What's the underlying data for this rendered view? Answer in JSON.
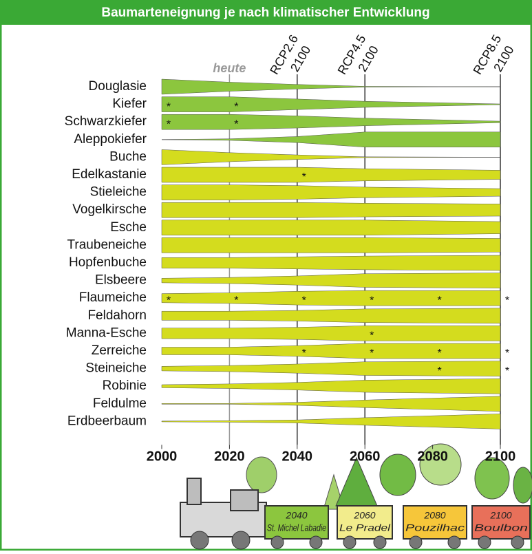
{
  "chart_data": {
    "type": "band",
    "title": "Baumarteneignung je nach klimatischer Entwicklung",
    "x": [
      2000,
      2020,
      2040,
      2060,
      2100
    ],
    "xlim": [
      2000,
      2100
    ],
    "xticks": [
      2000,
      2020,
      2040,
      2060,
      2080,
      2100
    ],
    "marker": "*",
    "reference_lines": [
      {
        "x": 2020,
        "label": [
          "heute"
        ],
        "color": "#999999"
      },
      {
        "x": 2040,
        "label": [
          "RCP2.6",
          "2100"
        ],
        "color": "#333333"
      },
      {
        "x": 2060,
        "label": [
          "RCP4.5",
          "2100"
        ],
        "color": "#333333"
      },
      {
        "x": 2100,
        "label": [
          "RCP8.5",
          "2100"
        ],
        "color": "#333333"
      }
    ],
    "series": [
      {
        "name": "Douglasie",
        "color": "#8cc63e",
        "values": [
          1,
          0.6,
          0.3,
          0.05,
          0
        ],
        "stars": []
      },
      {
        "name": "Kiefer",
        "color": "#8cc63e",
        "values": [
          1,
          1,
          0.7,
          0.4,
          0.05
        ],
        "stars": [
          2000,
          2020
        ]
      },
      {
        "name": "Schwarzkiefer",
        "color": "#8cc63e",
        "values": [
          1,
          1,
          0.8,
          0.5,
          0.1
        ],
        "stars": [
          2000,
          2020
        ]
      },
      {
        "name": "Aleppokiefer",
        "color": "#8cc63e",
        "values": [
          0,
          0.1,
          0.4,
          1,
          1
        ],
        "stars": []
      },
      {
        "name": "Buche",
        "color": "#d4dc1e",
        "values": [
          1,
          0.6,
          0.3,
          0.05,
          0
        ],
        "stars": []
      },
      {
        "name": "Edelkastanie",
        "color": "#d4dc1e",
        "values": [
          1,
          1,
          1,
          0.8,
          0.6
        ],
        "stars": [
          2040
        ]
      },
      {
        "name": "Stieleiche",
        "color": "#d4dc1e",
        "values": [
          1,
          1,
          0.9,
          0.7,
          0.5
        ],
        "stars": []
      },
      {
        "name": "Vogelkirsche",
        "color": "#d4dc1e",
        "values": [
          1,
          1,
          1,
          0.9,
          0.8
        ],
        "stars": []
      },
      {
        "name": "Esche",
        "color": "#d4dc1e",
        "values": [
          1,
          1,
          1,
          1,
          0.8
        ],
        "stars": []
      },
      {
        "name": "Traubeneiche",
        "color": "#d4dc1e",
        "values": [
          1,
          1,
          1,
          1,
          0.9
        ],
        "stars": []
      },
      {
        "name": "Hopfenbuche",
        "color": "#d4dc1e",
        "values": [
          0.7,
          0.7,
          0.8,
          0.9,
          1
        ],
        "stars": []
      },
      {
        "name": "Elsbeere",
        "color": "#d4dc1e",
        "values": [
          0.3,
          0.4,
          0.6,
          0.9,
          1
        ],
        "stars": []
      },
      {
        "name": "Flaumeiche",
        "color": "#d4dc1e",
        "values": [
          0.6,
          0.7,
          0.9,
          1,
          1
        ],
        "stars": [
          2000,
          2020,
          2040,
          2060,
          2080,
          2100
        ]
      },
      {
        "name": "Feldahorn",
        "color": "#d4dc1e",
        "values": [
          0.6,
          0.6,
          0.7,
          0.9,
          1
        ],
        "stars": []
      },
      {
        "name": "Manna-Esche",
        "color": "#d4dc1e",
        "values": [
          0.7,
          0.7,
          0.8,
          1,
          1
        ],
        "stars": [
          2060
        ]
      },
      {
        "name": "Zerreiche",
        "color": "#d4dc1e",
        "values": [
          0.5,
          0.5,
          0.7,
          1,
          1
        ],
        "stars": [
          2040,
          2060,
          2080,
          2100
        ]
      },
      {
        "name": "Steineiche",
        "color": "#d4dc1e",
        "values": [
          0.3,
          0.4,
          0.6,
          0.9,
          1
        ],
        "stars": [
          2080,
          2100
        ]
      },
      {
        "name": "Robinie",
        "color": "#d4dc1e",
        "values": [
          0.2,
          0.3,
          0.5,
          0.8,
          1
        ],
        "stars": []
      },
      {
        "name": "Feldulme",
        "color": "#d4dc1e",
        "values": [
          0.05,
          0.05,
          0.2,
          0.5,
          1
        ],
        "stars": []
      },
      {
        "name": "Erdbeerbaum",
        "color": "#d4dc1e",
        "values": [
          0.05,
          0.1,
          0.2,
          0.5,
          1
        ],
        "stars": []
      }
    ]
  },
  "illustration": {
    "wagons": [
      {
        "year": "2040",
        "place": "St. Michel Labadie",
        "color": "#8cc63e"
      },
      {
        "year": "2060",
        "place": "Le Pradel",
        "color": "#f2ec8c"
      },
      {
        "year": "2080",
        "place": "Pouzilhac",
        "color": "#f6c63a"
      },
      {
        "year": "2100",
        "place": "Boulbon",
        "color": "#e8705a"
      }
    ]
  }
}
